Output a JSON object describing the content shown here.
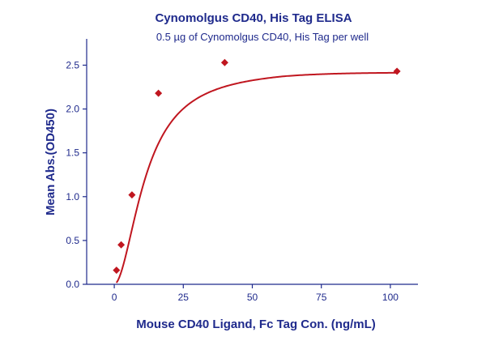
{
  "chart_data": {
    "type": "scatter",
    "title": "Cynomolgus CD40, His Tag ELISA",
    "subtitle": "0.5 µg of Cynomolgus CD40, His Tag per well",
    "xlabel": "Mouse CD40 Ligand, Fc Tag Con. (ng/mL)",
    "ylabel": "Mean Abs.(OD450)",
    "xlim": [
      -10,
      110
    ],
    "ylim": [
      0,
      2.8
    ],
    "xticks": [
      0,
      25,
      50,
      75,
      100
    ],
    "yticks": [
      0.0,
      0.5,
      1.0,
      1.5,
      2.0,
      2.5
    ],
    "xtick_labels": [
      "0",
      "25",
      "50",
      "75",
      "100"
    ],
    "ytick_labels": [
      "0.0",
      "0.5",
      "1.0",
      "1.5",
      "2.0",
      "2.5"
    ],
    "grid": false,
    "series": [
      {
        "x": [
          0.8,
          2.5,
          6.4,
          16.0,
          40.0,
          102.4
        ],
        "y": [
          0.16,
          0.45,
          1.02,
          2.18,
          2.53,
          2.43
        ],
        "marker": "diamond",
        "color": "#c0161f",
        "fit_curve": "4PL",
        "fit_color": "#c0161f"
      }
    ]
  }
}
